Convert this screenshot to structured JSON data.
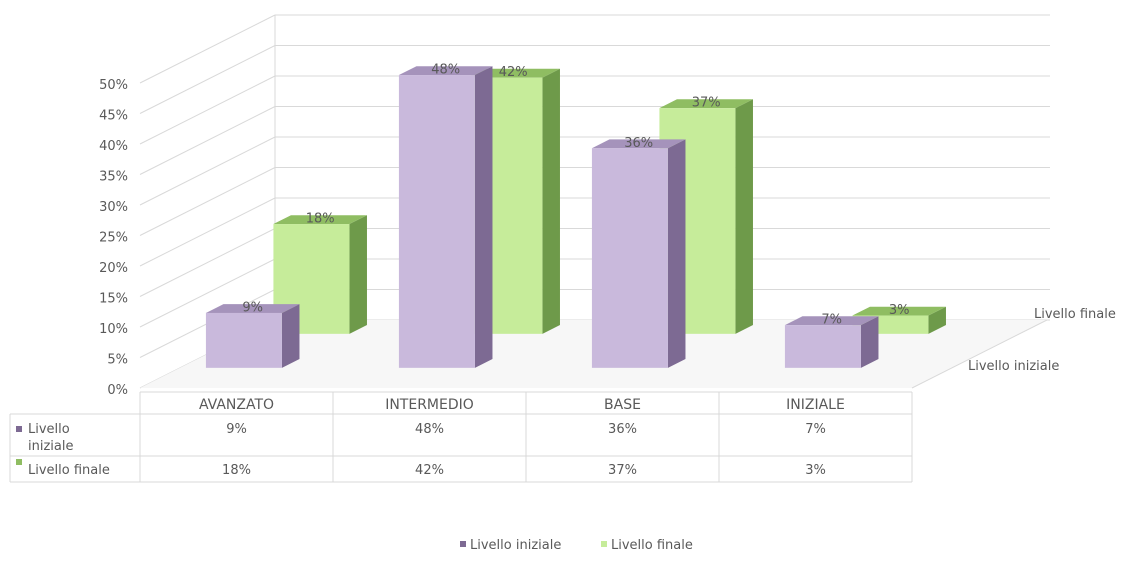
{
  "chart_data": {
    "type": "bar",
    "variant": "3d-clustered-column-with-data-table",
    "categories": [
      "AVANZATO",
      "INTERMEDIO",
      "BASE",
      "INIZIALE"
    ],
    "series": [
      {
        "name": "Livello iniziale",
        "values": [
          9,
          48,
          36,
          7
        ],
        "labels": [
          "9%",
          "48%",
          "36%",
          "7%"
        ],
        "table_name": "Livello iniziale"
      },
      {
        "name": "Livello finale",
        "values": [
          18,
          42,
          37,
          3
        ],
        "labels": [
          "18%",
          "42%",
          "37%",
          "3%"
        ],
        "table_name": "Livello finale"
      }
    ],
    "depth_axis_labels": [
      "Livello iniziale",
      "Livello finale"
    ],
    "ylim": [
      0,
      50
    ],
    "ytick_labels": [
      "0%",
      "5%",
      "10%",
      "15%",
      "20%",
      "25%",
      "30%",
      "35%",
      "40%",
      "45%",
      "50%"
    ],
    "grid": true,
    "legend": "bottom",
    "colors": {
      "iniziale_front": "#c9b9dc",
      "iniziale_side": "#7d6a93",
      "iniziale_top": "#a593bb",
      "finale_front": "#c6ec9a",
      "finale_side": "#6e9a4a",
      "finale_top": "#8fbd62",
      "grid": "#d9d9d9",
      "text": "#595959"
    }
  }
}
